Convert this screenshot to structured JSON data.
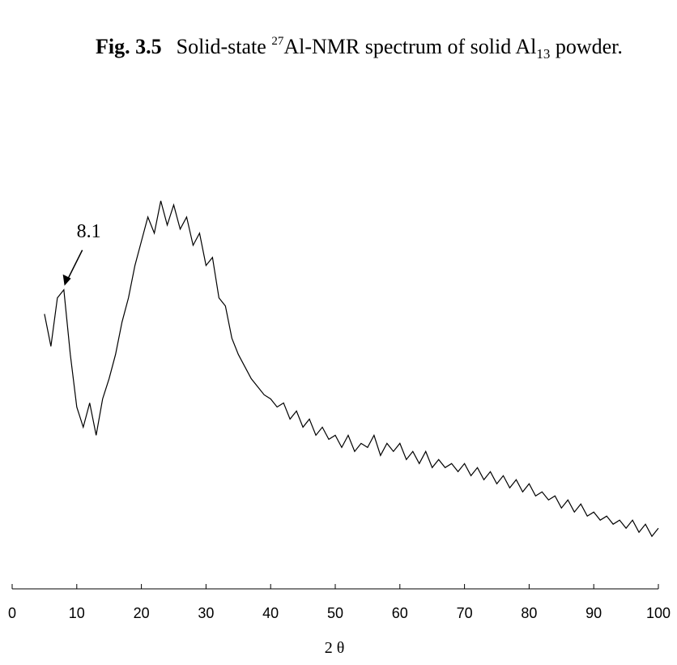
{
  "chart_data": {
    "type": "line",
    "title": {
      "label": "Fig. 3.5",
      "parts": [
        "Solid-state ",
        "27",
        "Al-NMR spectrum of solid Al",
        "13",
        " powder."
      ]
    },
    "x_label": "2 θ",
    "annotation": {
      "text": "8.1",
      "x": 8.1,
      "y": 75
    },
    "color": "#000000",
    "xlim": [
      0,
      100
    ],
    "xticks": [
      0,
      10,
      20,
      30,
      40,
      50,
      60,
      70,
      80,
      90,
      100
    ],
    "ylim": [
      0,
      100
    ],
    "x": [
      5,
      6,
      7,
      8,
      9,
      10,
      11,
      12,
      13,
      14,
      15,
      16,
      17,
      18,
      19,
      20,
      21,
      22,
      23,
      24,
      25,
      26,
      27,
      28,
      29,
      30,
      31,
      32,
      33,
      34,
      35,
      36,
      37,
      38,
      39,
      40,
      41,
      42,
      43,
      44,
      45,
      46,
      47,
      48,
      49,
      50,
      51,
      52,
      53,
      54,
      55,
      56,
      57,
      58,
      59,
      60,
      61,
      62,
      63,
      64,
      65,
      66,
      67,
      68,
      69,
      70,
      71,
      72,
      73,
      74,
      75,
      76,
      77,
      78,
      79,
      80,
      81,
      82,
      83,
      84,
      85,
      86,
      87,
      88,
      89,
      90,
      91,
      92,
      93,
      94,
      95,
      96,
      97,
      98,
      99,
      100
    ],
    "values": [
      68,
      60,
      72,
      74,
      58,
      45,
      40,
      46,
      38,
      47,
      52,
      58,
      66,
      72,
      80,
      86,
      92,
      88,
      96,
      90,
      95,
      89,
      92,
      85,
      88,
      80,
      82,
      72,
      70,
      62,
      58,
      55,
      52,
      50,
      48,
      47,
      45,
      46,
      42,
      44,
      40,
      42,
      38,
      40,
      37,
      38,
      35,
      38,
      34,
      36,
      35,
      38,
      33,
      36,
      34,
      36,
      32,
      34,
      31,
      34,
      30,
      32,
      30,
      31,
      29,
      31,
      28,
      30,
      27,
      29,
      26,
      28,
      25,
      27,
      24,
      26,
      23,
      24,
      22,
      23,
      20,
      22,
      19,
      21,
      18,
      19,
      17,
      18,
      16,
      17,
      15,
      17,
      14,
      16,
      13,
      15
    ]
  }
}
